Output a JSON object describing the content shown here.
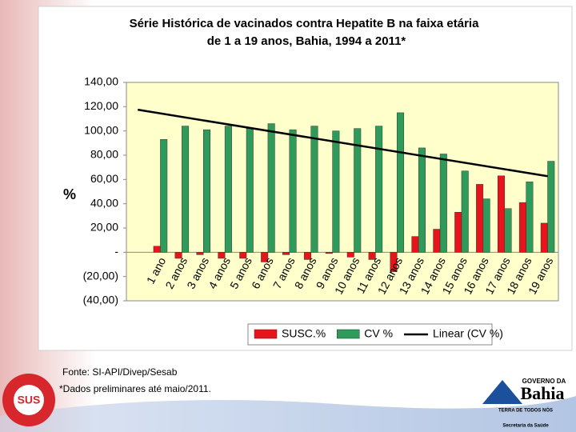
{
  "chart_data": {
    "type": "bar",
    "title": "Série Histórica de vacinados contra Hepatite B na faixa etária",
    "subtitle": "de 1 a 19 anos, Bahia, 1994 a 2011*",
    "y_label": "%",
    "categories": [
      "1 ano",
      "2 anos",
      "3 anos",
      "4 anos",
      "5 anos",
      "6 anos",
      "7 anos",
      "8 anos",
      "9 anos",
      "10 anos",
      "11 anos",
      "12 anos",
      "13 anos",
      "14 anos",
      "15 anos",
      "16 anos",
      "17 anos",
      "18 anos",
      "19 anos"
    ],
    "series": [
      {
        "name": "SUSC.%",
        "color": "#e8141b",
        "values": [
          5,
          -5,
          -2,
          -5,
          -5,
          -8,
          -2,
          -6,
          -1,
          -4,
          -6,
          -16,
          13,
          19,
          33,
          56,
          63,
          41,
          24
        ]
      },
      {
        "name": "CV %",
        "color": "#2e9b5a",
        "values": [
          93,
          104,
          101,
          104,
          102,
          106,
          101,
          104,
          100,
          102,
          104,
          115,
          86,
          81,
          67,
          44,
          36,
          58,
          75
        ]
      }
    ],
    "trendline": {
      "name": "Linear (CV %)",
      "color": "#000000"
    },
    "ylim": [
      -40,
      140
    ],
    "yticks": [
      {
        "value": 140,
        "label": "140,00"
      },
      {
        "value": 120,
        "label": "120,00"
      },
      {
        "value": 100,
        "label": "100,00"
      },
      {
        "value": 80,
        "label": "80,00"
      },
      {
        "value": 60,
        "label": "60,00"
      },
      {
        "value": 40,
        "label": "40,00"
      },
      {
        "value": 20,
        "label": "20,00"
      },
      {
        "value": 0,
        "label": "-"
      },
      {
        "value": -20,
        "label": "(20,00)"
      },
      {
        "value": -40,
        "label": "(40,00)"
      }
    ]
  },
  "notes": {
    "source": "Fonte: SI-API/Divep/Sesab",
    "preliminary": "*Dados preliminares até maio/2011."
  },
  "logos": {
    "gov": "GOVERNO DA",
    "state": "Bahia",
    "motto": "TERRA DE TODOS NÓS",
    "secretaria": "Secretaria da Saúde",
    "sus": "SUS"
  }
}
